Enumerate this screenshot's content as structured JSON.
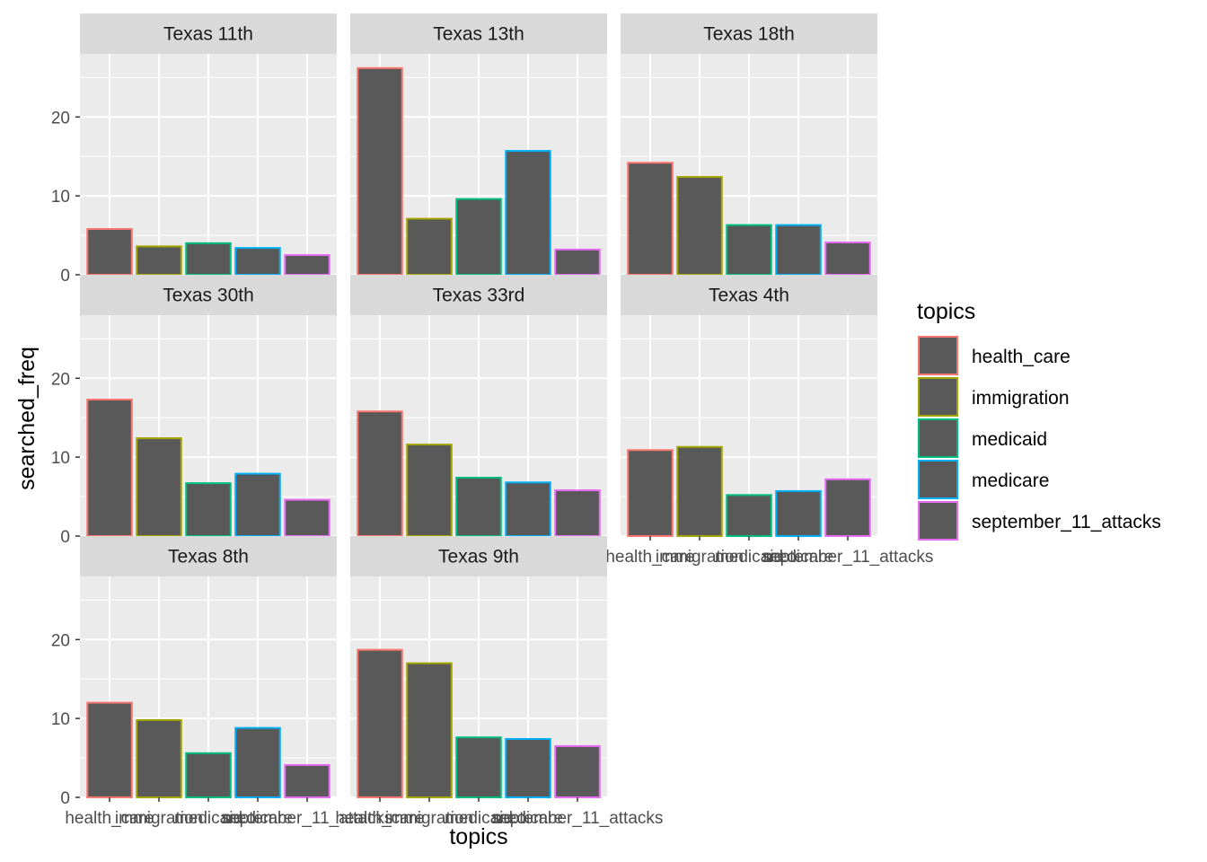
{
  "chart_data": {
    "type": "bar",
    "facet_by": "district",
    "xlabel": "topics",
    "ylabel": "searched_freq",
    "ylim": [
      0,
      28
    ],
    "yticks": [
      0,
      10,
      20
    ],
    "grid": true,
    "legend": {
      "title": "topics",
      "position": "right"
    },
    "categories": [
      "health_care",
      "immigration",
      "medicaid",
      "medicare",
      "september_11_attacks"
    ],
    "category_colors": [
      "#F8766D",
      "#A3A500",
      "#00BF7D",
      "#00B0F6",
      "#E76BF3"
    ],
    "bar_fill": "#595959",
    "panel_background": "#EBEBEB",
    "strip_background": "#D9D9D9",
    "panels": [
      {
        "name": "Texas 11th",
        "values": [
          5.8,
          3.6,
          4.0,
          3.4,
          2.5
        ]
      },
      {
        "name": "Texas 13th",
        "values": [
          26.2,
          7.1,
          9.6,
          15.7,
          3.2
        ]
      },
      {
        "name": "Texas 18th",
        "values": [
          14.2,
          12.4,
          6.3,
          6.3,
          4.1
        ]
      },
      {
        "name": "Texas 30th",
        "values": [
          17.3,
          12.4,
          6.7,
          7.9,
          4.6
        ]
      },
      {
        "name": "Texas 33rd",
        "values": [
          15.8,
          11.6,
          7.4,
          6.8,
          5.8
        ]
      },
      {
        "name": "Texas 4th",
        "values": [
          10.9,
          11.3,
          5.2,
          5.7,
          7.2
        ]
      },
      {
        "name": "Texas 8th",
        "values": [
          12.0,
          9.8,
          5.6,
          8.8,
          4.1
        ]
      },
      {
        "name": "Texas 9th",
        "values": [
          18.7,
          17.0,
          7.6,
          7.4,
          6.5
        ]
      }
    ]
  }
}
